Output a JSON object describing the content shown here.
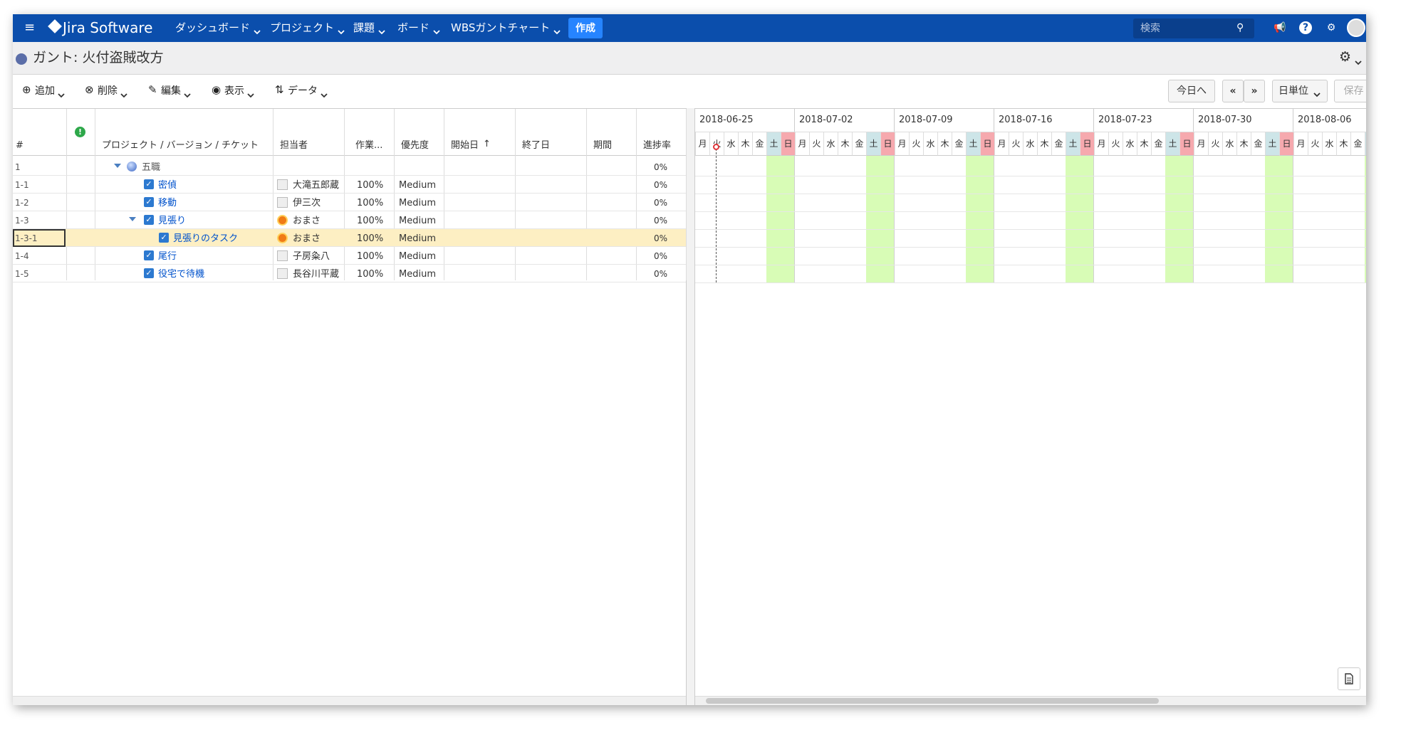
{
  "nav": {
    "brand": "Jira Software",
    "menus": [
      "ダッシュボード",
      "プロジェクト",
      "課題",
      "ボード",
      "WBSガントチャート"
    ],
    "create": "作成",
    "search": "検索"
  },
  "header": {
    "title": "ガント: 火付盗賊改方"
  },
  "toolbar": {
    "left": [
      "追加",
      "削除",
      "編集",
      "表示",
      "データ"
    ],
    "today": "今日へ",
    "prev": "«",
    "next": "»",
    "scale": "日単位",
    "save": "保存"
  },
  "table": {
    "columns": [
      "#",
      "プロジェクト / バージョン / チケット",
      "担当者",
      "作業...",
      "優先度",
      "開始日",
      "終了日",
      "期間",
      "進捗率"
    ],
    "rows": [
      {
        "id": "1",
        "name": "五職",
        "progress": "0%"
      },
      {
        "id": "1-1",
        "name": "密偵",
        "assignee": "大滝五郎蔵",
        "work": "100%",
        "priority": "Medium",
        "progress": "0%"
      },
      {
        "id": "1-2",
        "name": "移動",
        "assignee": "伊三次",
        "work": "100%",
        "priority": "Medium",
        "progress": "0%"
      },
      {
        "id": "1-3",
        "name": "見張り",
        "assignee": "おまさ",
        "work": "100%",
        "priority": "Medium",
        "progress": "0%"
      },
      {
        "id": "1-3-1",
        "name": "見張りのタスク",
        "assignee": "おまさ",
        "work": "100%",
        "priority": "Medium",
        "progress": "0%"
      },
      {
        "id": "1-4",
        "name": "尾行",
        "assignee": "子房粂八",
        "work": "100%",
        "priority": "Medium",
        "progress": "0%"
      },
      {
        "id": "1-5",
        "name": "役宅で待機",
        "assignee": "長谷川平蔵",
        "work": "100%",
        "priority": "Medium",
        "progress": "0%"
      }
    ]
  },
  "gantt": {
    "weeks": [
      "2018-06-25",
      "2018-07-02",
      "2018-07-09",
      "2018-07-16",
      "2018-07-23",
      "2018-07-30",
      "2018-08-06"
    ],
    "weekdays": [
      "月",
      "火",
      "水",
      "木",
      "金",
      "土",
      "日"
    ]
  }
}
